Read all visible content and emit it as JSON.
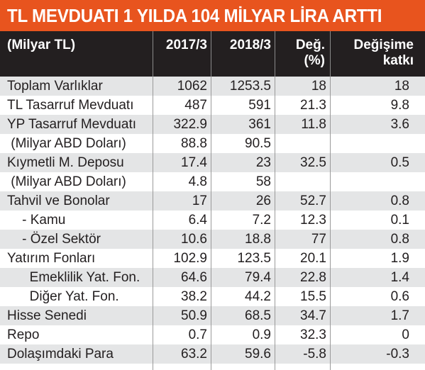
{
  "title": "TL MEVDUATI 1 YILDA 104 MİLYAR LİRA ARTTI",
  "colors": {
    "title_bg": "#e8541e",
    "header_bg": "#231f20",
    "row_shaded": "#e4e5e6",
    "row_white": "#ffffff"
  },
  "header": {
    "unit": "(Milyar TL)",
    "col_2017": "2017/3",
    "col_2018": "2018/3",
    "col_change_line1": "Değ.",
    "col_change_line2": "(%)",
    "col_contrib_line1": "Değişime",
    "col_contrib_line2": "katkı"
  },
  "rows": [
    {
      "label": "Toplam Varlıklar",
      "v2017": "1062",
      "v2018": "1253.5",
      "change": "18",
      "contrib": "18"
    },
    {
      "label": "TL Tasarruf Mevduatı",
      "v2017": "487",
      "v2018": "591",
      "change": "21.3",
      "contrib": "9.8"
    },
    {
      "label": "YP Tasarruf Mevduatı",
      "v2017": "322.9",
      "v2018": "361",
      "change": "11.8",
      "contrib": "3.6"
    },
    {
      "label": " (Milyar ABD Doları)",
      "v2017": "88.8",
      "v2018": "90.5",
      "change": "",
      "contrib": ""
    },
    {
      "label": "Kıymetli M. Deposu",
      "v2017": "17.4",
      "v2018": "23",
      "change": "32.5",
      "contrib": "0.5"
    },
    {
      "label": " (Milyar ABD Doları)",
      "v2017": "4.8",
      "v2018": "58",
      "change": "",
      "contrib": ""
    },
    {
      "label": "Tahvil ve Bonolar",
      "v2017": "17",
      "v2018": "26",
      "change": "52.7",
      "contrib": "0.8"
    },
    {
      "label": "    - Kamu",
      "v2017": "6.4",
      "v2018": "7.2",
      "change": "12.3",
      "contrib": "0.1"
    },
    {
      "label": "    - Özel Sektör",
      "v2017": "10.6",
      "v2018": "18.8",
      "change": "77",
      "contrib": "0.8"
    },
    {
      "label": "Yatırım Fonları",
      "v2017": "102.9",
      "v2018": "123.5",
      "change": "20.1",
      "contrib": "1.9"
    },
    {
      "label": "      Emeklilik Yat. Fon.",
      "v2017": "64.6",
      "v2018": "79.4",
      "change": "22.8",
      "contrib": "1.4"
    },
    {
      "label": "      Diğer Yat. Fon.",
      "v2017": "38.2",
      "v2018": "44.2",
      "change": "15.5",
      "contrib": "0.6"
    },
    {
      "label": "Hisse Senedi",
      "v2017": "50.9",
      "v2018": "68.5",
      "change": "34.7",
      "contrib": "1.7"
    },
    {
      "label": "Repo",
      "v2017": "0.7",
      "v2018": "0.9",
      "change": "32.3",
      "contrib": "0"
    },
    {
      "label": "Dolaşımdaki Para",
      "v2017": "63.2",
      "v2018": "59.6",
      "change": "-5.8",
      "contrib": "-0.3"
    }
  ]
}
